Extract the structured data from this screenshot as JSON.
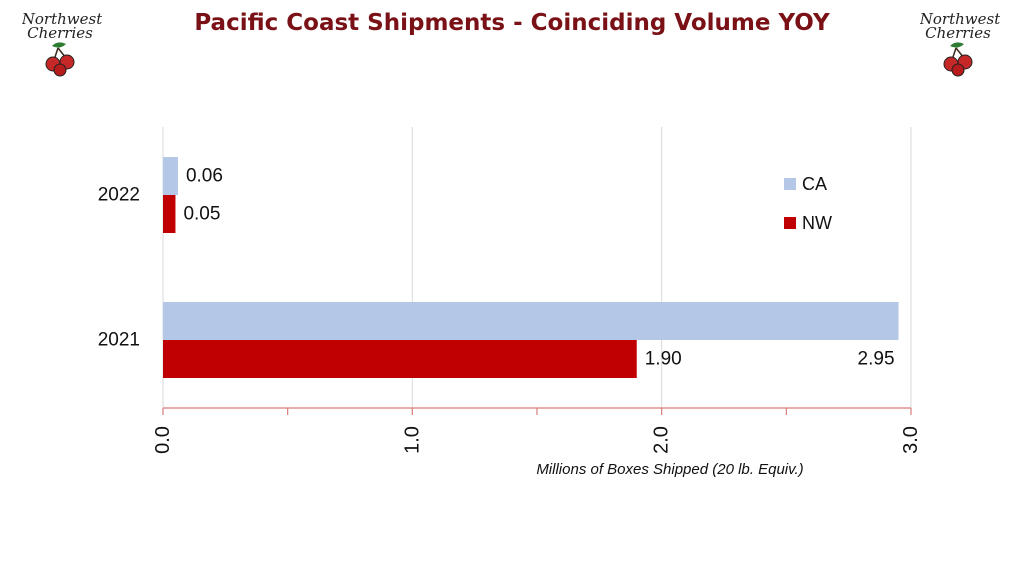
{
  "header": {
    "title": "Pacific Coast Shipments - Coinciding Volume YOY",
    "logo_text_line1": "Northwest",
    "logo_text_line2": "Cherries"
  },
  "colors": {
    "title": "#7a1116",
    "CA": "#b4c7e7",
    "NW": "#c00000",
    "axis": "#d97b7b",
    "grid": "#d9d9d9"
  },
  "chart_data": {
    "type": "bar",
    "orientation": "horizontal",
    "categories": [
      "2022",
      "2021"
    ],
    "series": [
      {
        "name": "CA",
        "values": [
          0.06,
          2.95
        ],
        "labels": [
          "0.06",
          "2.95"
        ]
      },
      {
        "name": "NW",
        "values": [
          0.05,
          1.9
        ],
        "labels": [
          "0.05",
          "1.90"
        ]
      }
    ],
    "xlabel": "Millions of Boxes Shipped (20 lb. Equiv.)",
    "xlim": [
      0,
      3.0
    ],
    "xticks": [
      "0.0",
      "1.0",
      "2.0",
      "3.0"
    ],
    "grid": true,
    "legend_position": "top-right"
  }
}
